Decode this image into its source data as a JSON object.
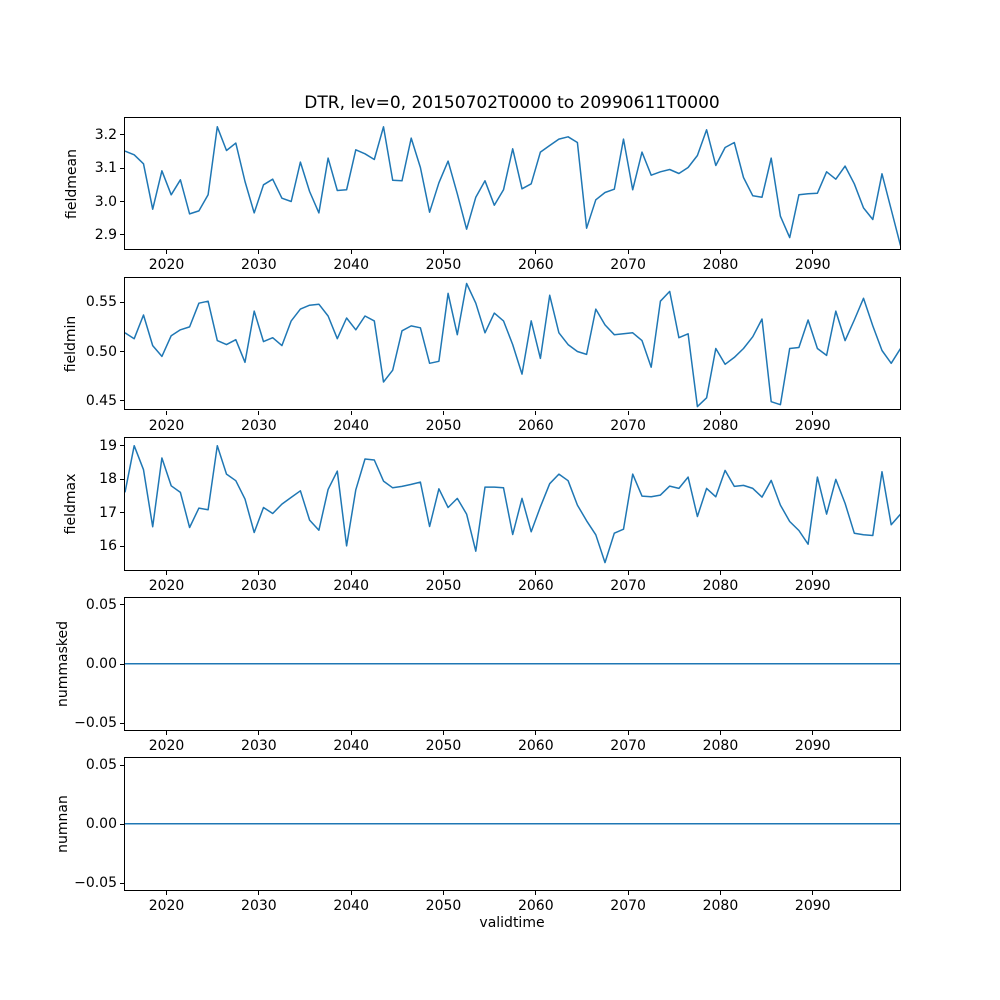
{
  "figure": {
    "background": "#ffffff"
  },
  "chart_data": {
    "type": "line",
    "title": "DTR, lev=0, 20150702T0000 to 20990611T0000",
    "xlabel": "validtime",
    "legend": "none",
    "grid": false,
    "line_color": "#1f77b4",
    "xlim": [
      2015.5,
      2099.45
    ],
    "x_point_offset_years": 0.5,
    "x_ticks": [
      2020,
      2030,
      2040,
      2050,
      2060,
      2070,
      2080,
      2090
    ],
    "x_years": [
      2015,
      2016,
      2017,
      2018,
      2019,
      2020,
      2021,
      2022,
      2023,
      2024,
      2025,
      2026,
      2027,
      2028,
      2029,
      2030,
      2031,
      2032,
      2033,
      2034,
      2035,
      2036,
      2037,
      2038,
      2039,
      2040,
      2041,
      2042,
      2043,
      2044,
      2045,
      2046,
      2047,
      2048,
      2049,
      2050,
      2051,
      2052,
      2053,
      2054,
      2055,
      2056,
      2057,
      2058,
      2059,
      2060,
      2061,
      2062,
      2063,
      2064,
      2065,
      2066,
      2067,
      2068,
      2069,
      2070,
      2071,
      2072,
      2073,
      2074,
      2075,
      2076,
      2077,
      2078,
      2079,
      2080,
      2081,
      2082,
      2083,
      2084,
      2085,
      2086,
      2087,
      2088,
      2089,
      2090,
      2091,
      2092,
      2093,
      2094,
      2095,
      2096,
      2097,
      2098,
      2099
    ],
    "subplots": [
      {
        "ylabel": "fieldmean",
        "ylim": [
          2.8565,
          3.2503
        ],
        "ytick_vals": [
          2.9,
          3.0,
          3.1,
          3.2
        ],
        "ytick_labels": [
          "2.9",
          "3.0",
          "3.1",
          "3.2"
        ],
        "values": [
          3.151,
          3.14,
          3.113,
          2.977,
          3.092,
          3.02,
          3.065,
          2.963,
          2.972,
          3.02,
          3.224,
          3.153,
          3.175,
          3.06,
          2.966,
          3.05,
          3.067,
          3.01,
          3.0,
          3.118,
          3.03,
          2.966,
          3.13,
          3.033,
          3.035,
          3.155,
          3.143,
          3.126,
          3.224,
          3.064,
          3.062,
          3.19,
          3.102,
          2.968,
          3.056,
          3.121,
          3.023,
          2.917,
          3.013,
          3.062,
          2.989,
          3.035,
          3.158,
          3.038,
          3.053,
          3.148,
          3.168,
          3.187,
          3.194,
          3.177,
          2.92,
          3.005,
          3.027,
          3.037,
          3.187,
          3.035,
          3.148,
          3.079,
          3.089,
          3.096,
          3.084,
          3.102,
          3.138,
          3.215,
          3.108,
          3.162,
          3.177,
          3.072,
          3.017,
          3.013,
          3.13,
          2.956,
          2.892,
          3.02,
          3.023,
          3.025,
          3.089,
          3.067,
          3.106,
          3.053,
          2.981,
          2.946,
          3.083,
          2.976,
          2.868
        ]
      },
      {
        "ylabel": "fieldmin",
        "ylim": [
          0.4412,
          0.5746
        ],
        "ytick_vals": [
          0.45,
          0.5,
          0.55
        ],
        "ytick_labels": [
          "0.45",
          "0.50",
          "0.55"
        ],
        "values": [
          0.519,
          0.513,
          0.537,
          0.506,
          0.495,
          0.516,
          0.522,
          0.525,
          0.549,
          0.551,
          0.511,
          0.507,
          0.512,
          0.489,
          0.541,
          0.51,
          0.514,
          0.506,
          0.531,
          0.543,
          0.547,
          0.548,
          0.536,
          0.513,
          0.534,
          0.522,
          0.536,
          0.531,
          0.469,
          0.481,
          0.521,
          0.526,
          0.524,
          0.488,
          0.49,
          0.559,
          0.517,
          0.569,
          0.549,
          0.519,
          0.539,
          0.531,
          0.507,
          0.477,
          0.531,
          0.493,
          0.557,
          0.519,
          0.507,
          0.5,
          0.497,
          0.543,
          0.527,
          0.517,
          0.518,
          0.519,
          0.511,
          0.484,
          0.551,
          0.561,
          0.514,
          0.518,
          0.444,
          0.453,
          0.503,
          0.487,
          0.494,
          0.503,
          0.515,
          0.533,
          0.449,
          0.446,
          0.503,
          0.504,
          0.532,
          0.503,
          0.496,
          0.541,
          0.511,
          0.532,
          0.554,
          0.526,
          0.501,
          0.488,
          0.503
        ]
      },
      {
        "ylabel": "fieldmax",
        "ylim": [
          15.295,
          19.23
        ],
        "ytick_vals": [
          16,
          17,
          18,
          19
        ],
        "ytick_labels": [
          "16",
          "17",
          "18",
          "19"
        ],
        "values": [
          17.6,
          19.0,
          18.28,
          16.57,
          18.63,
          17.8,
          17.6,
          16.55,
          17.13,
          17.08,
          19.0,
          18.15,
          17.95,
          17.4,
          16.4,
          17.15,
          16.97,
          17.25,
          17.45,
          17.65,
          16.77,
          16.47,
          17.69,
          18.24,
          16.0,
          17.68,
          18.6,
          18.57,
          17.94,
          17.74,
          17.78,
          17.84,
          17.91,
          16.58,
          17.71,
          17.15,
          17.42,
          16.95,
          15.84,
          17.76,
          17.76,
          17.74,
          16.34,
          17.42,
          16.42,
          17.17,
          17.86,
          18.15,
          17.95,
          17.22,
          16.75,
          16.33,
          15.5,
          16.38,
          16.5,
          18.15,
          17.49,
          17.47,
          17.52,
          17.79,
          17.72,
          18.06,
          16.88,
          17.72,
          17.47,
          18.26,
          17.78,
          17.81,
          17.72,
          17.46,
          17.96,
          17.22,
          16.73,
          16.46,
          16.05,
          18.06,
          16.95,
          17.99,
          17.27,
          16.38,
          16.33,
          16.31,
          18.22,
          16.63,
          16.95
        ]
      },
      {
        "ylabel": "nummasked",
        "ylim": [
          -0.0556,
          0.0556
        ],
        "ytick_vals": [
          -0.05,
          0.0,
          0.05
        ],
        "ytick_labels": [
          "−0.05",
          "0.00",
          "0.05"
        ],
        "values": 0
      },
      {
        "ylabel": "numnan",
        "ylim": [
          -0.0556,
          0.0556
        ],
        "ytick_vals": [
          -0.05,
          0.0,
          0.05
        ],
        "ytick_labels": [
          "−0.05",
          "0.00",
          "0.05"
        ],
        "values": 0
      }
    ]
  }
}
